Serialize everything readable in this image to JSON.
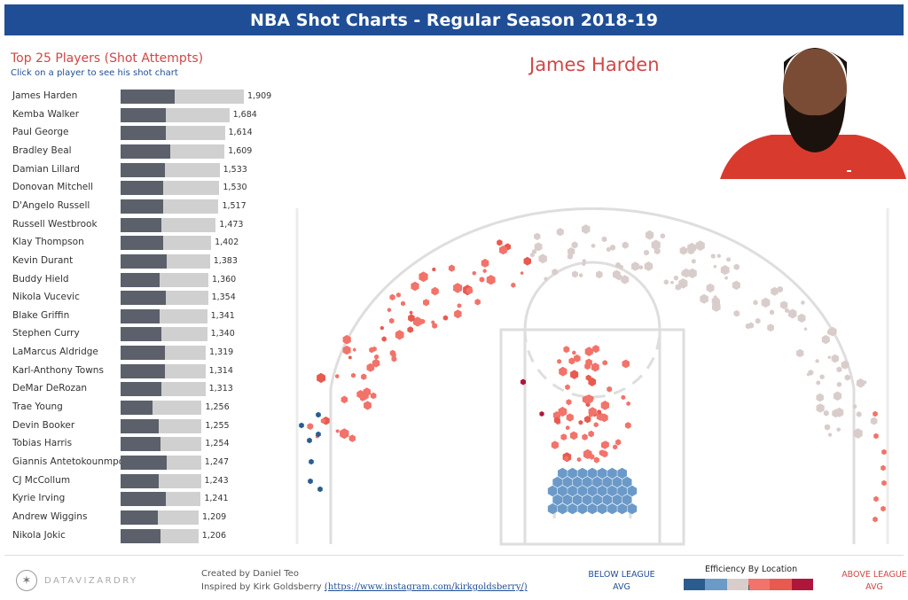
{
  "header": {
    "title": "NBA Shot Charts - Regular Season 2018-19"
  },
  "left_panel": {
    "title": "Top 25 Players (Shot Attempts)",
    "subtitle": "Click on a player to see his shot chart"
  },
  "selected_player": {
    "name": "James Harden"
  },
  "colors": {
    "banner": "#1f4e96",
    "accent_red": "#d14646",
    "bar_made": "#5b606b",
    "bar_total": "#d0d0d0",
    "eff_scale": [
      "#2b5c8f",
      "#6b9ac9",
      "#d9cdcb",
      "#f2736a",
      "#e85a4f",
      "#b0163c"
    ]
  },
  "chart_data": [
    {
      "type": "bar",
      "title": "Top 25 Players (Shot Attempts)",
      "orientation": "horizontal",
      "categories": [
        "James Harden",
        "Kemba Walker",
        "Paul George",
        "Bradley Beal",
        "Damian Lillard",
        "Donovan Mitchell",
        "D'Angelo Russell",
        "Russell Westbrook",
        "Klay Thompson",
        "Kevin Durant",
        "Buddy Hield",
        "Nikola Vucevic",
        "Blake Griffin",
        "Stephen Curry",
        "LaMarcus Aldridge",
        "Karl-Anthony Towns",
        "DeMar DeRozan",
        "Trae Young",
        "Devin Booker",
        "Tobias Harris",
        "Giannis Antetokounmpo",
        "CJ McCollum",
        "Kyrie Irving",
        "Andrew Wiggins",
        "Nikola Jokic"
      ],
      "values": [
        1909,
        1684,
        1614,
        1609,
        1533,
        1530,
        1517,
        1473,
        1402,
        1383,
        1360,
        1354,
        1341,
        1340,
        1319,
        1314,
        1313,
        1256,
        1255,
        1254,
        1247,
        1243,
        1241,
        1209,
        1206
      ],
      "value_labels": [
        "1,909",
        "1,684",
        "1,614",
        "1,609",
        "1,533",
        "1,530",
        "1,517",
        "1,473",
        "1,402",
        "1,383",
        "1,360",
        "1,354",
        "1,341",
        "1,340",
        "1,319",
        "1,314",
        "1,313",
        "1,256",
        "1,255",
        "1,254",
        "1,247",
        "1,243",
        "1,241",
        "1,209",
        "1,206"
      ],
      "made": [
        843,
        703,
        707,
        764,
        681,
        661,
        659,
        630,
        655,
        721,
        605,
        701,
        608,
        632,
        684,
        681,
        631,
        493,
        586,
        621,
        721,
        597,
        700,
        575,
        616
      ]
    },
    {
      "type": "scatter",
      "title": "James Harden",
      "marker": "hexagon",
      "color_scale": "Efficiency By Location",
      "legend_low": "BELOW LEAGUE AVG",
      "legend_high": "ABOVE LEAGUE AVG",
      "x_unit": "ft from basket (left -, right +)",
      "y_unit": "ft from baseline",
      "x_range": [
        -25,
        25
      ],
      "y_range": [
        0,
        35
      ]
    }
  ],
  "footer": {
    "brand": "DATAVIZARDRY",
    "credit": "Created by Daniel Teo",
    "inspired_prefix": "Inspired by Kirk Goldsberry",
    "inspired_link": "(https://www.instagram.com/kirkgoldsberry/)",
    "below": "BELOW LEAGUE AVG",
    "above": "ABOVE LEAGUE AVG",
    "legend_title": "Efficiency By Location"
  }
}
